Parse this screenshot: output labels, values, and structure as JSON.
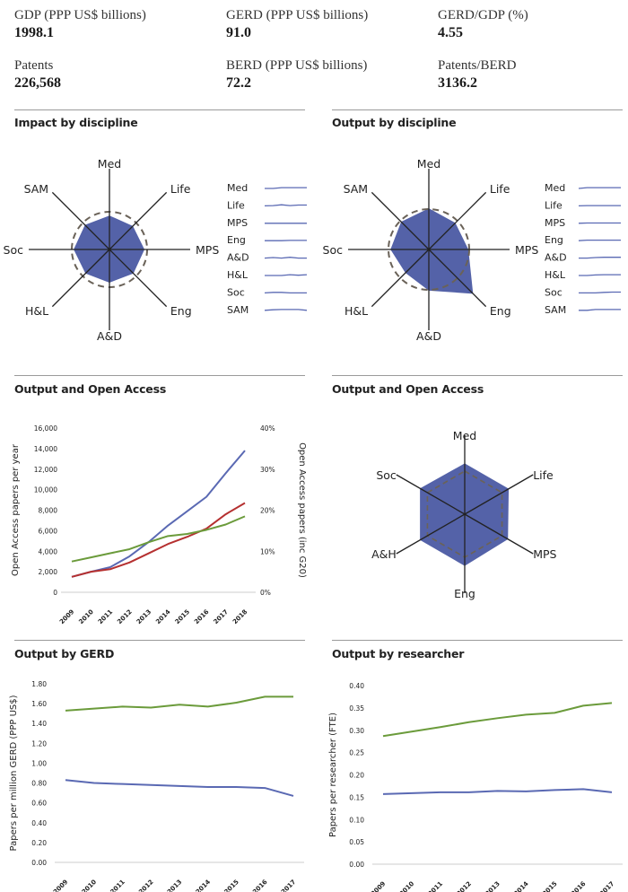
{
  "stats": [
    {
      "label": "GDP (PPP US$ billions)",
      "value": "1998.1"
    },
    {
      "label": "GERD (PPP US$ billions)",
      "value": "91.0"
    },
    {
      "label": "GERD/GDP (%)",
      "value": "4.55"
    },
    {
      "label": "Patents",
      "value": "226,568"
    },
    {
      "label": "BERD (PPP US$ billions)",
      "value": "72.2"
    },
    {
      "label": "Patents/BERD",
      "value": "3136.2"
    }
  ],
  "sections": {
    "impact": "Impact by discipline",
    "output": "Output by discipline",
    "oa_line": "Output and Open Access",
    "oa_radar": "Output and Open Access",
    "gerd": "Output by GERD",
    "researcher": "Output by researcher"
  },
  "colors": {
    "fill": "#5462a8",
    "blue": "#5a69b3",
    "red": "#b53030",
    "green": "#6b9b3b",
    "dash": "#6a6258"
  },
  "chart_data": [
    {
      "id": "impact",
      "type": "radar",
      "axes": [
        "Med",
        "Life",
        "MPS",
        "Eng",
        "A&D",
        "H&L",
        "Soc",
        "SAM"
      ],
      "values": [
        0.9,
        0.88,
        0.93,
        0.9,
        0.88,
        0.9,
        0.95,
        0.92
      ],
      "reference": 1.0,
      "sparklines": [
        [
          0,
          0,
          0.3,
          0.3,
          0.3,
          0.3
        ],
        [
          0,
          0.1,
          0.4,
          0.1,
          0.3,
          0.3
        ],
        [
          0,
          0,
          0,
          0,
          0,
          0
        ],
        [
          0,
          0,
          0,
          0.1,
          0.1,
          0.1
        ],
        [
          0,
          0.2,
          0,
          0.3,
          0,
          0
        ],
        [
          0,
          0,
          0,
          0.3,
          0.1,
          0.3
        ],
        [
          0,
          0.2,
          0.2,
          0,
          0,
          0
        ],
        [
          0,
          0.2,
          0.3,
          0.3,
          0.3,
          0
        ]
      ]
    },
    {
      "id": "output",
      "type": "radar",
      "axes": [
        "Med",
        "Life",
        "MPS",
        "Eng",
        "A&D",
        "H&L",
        "Soc",
        "SAM"
      ],
      "values": [
        1.02,
        0.93,
        0.98,
        1.55,
        1.02,
        0.82,
        0.95,
        0.97
      ],
      "reference": 1.0,
      "sparklines": [
        [
          0,
          0.3,
          0.3,
          0.3,
          0.3,
          0.3
        ],
        [
          0,
          0.1,
          0.1,
          0.1,
          0.1,
          0.1
        ],
        [
          0,
          0.1,
          0.1,
          0.1,
          0.1,
          0.1
        ],
        [
          0,
          0.2,
          0.2,
          0.2,
          0.2,
          0.2
        ],
        [
          0,
          0,
          0.2,
          0.3,
          0.3,
          0.3
        ],
        [
          0,
          0,
          0.2,
          0.3,
          0.3,
          0.3
        ],
        [
          0,
          0,
          0,
          0.2,
          0.3,
          0.3
        ],
        [
          0,
          0,
          0.3,
          0.3,
          0.3,
          0.3
        ]
      ]
    },
    {
      "id": "oa_line",
      "type": "line",
      "x": [
        "2009",
        "2010",
        "2011",
        "2012",
        "2013",
        "2014",
        "2015",
        "2016",
        "2017",
        "2018"
      ],
      "ylabel": "Open Access papers per year",
      "y2label": "Open Access papers (inc G20)",
      "yticks": [
        "0",
        "2,000",
        "4,000",
        "6,000",
        "8,000",
        "10,000",
        "12,000",
        "14,000",
        "16,000"
      ],
      "y2ticks": [
        "0%",
        "10%",
        "20%",
        "30%",
        "40%"
      ],
      "ylim": [
        0,
        16000
      ],
      "y2lim": [
        0,
        40
      ],
      "series": [
        {
          "name": "blue",
          "axis": "left",
          "values": [
            1500,
            2000,
            2450,
            3500,
            4900,
            6500,
            7900,
            9300,
            11600,
            13800
          ]
        },
        {
          "name": "red",
          "axis": "left",
          "values": [
            1500,
            2000,
            2250,
            2900,
            3800,
            4700,
            5400,
            6200,
            7600,
            8700
          ]
        },
        {
          "name": "green",
          "axis": "right",
          "values": [
            7.5,
            8.5,
            9.5,
            10.5,
            12.2,
            13.7,
            14.2,
            15.2,
            16.5,
            18.5
          ]
        }
      ]
    },
    {
      "id": "oa_radar",
      "type": "radar",
      "axes": [
        "Med",
        "Life",
        "MPS",
        "Eng",
        "A&H",
        "Soc"
      ],
      "values": [
        1.18,
        1.18,
        1.16,
        1.2,
        1.2,
        1.2
      ],
      "reference": 1.0
    },
    {
      "id": "gerd",
      "type": "line",
      "x": [
        "2009",
        "2010",
        "2011",
        "2012",
        "2013",
        "2014",
        "2015",
        "2016",
        "2017"
      ],
      "ylabel": "Papers per million GERD (PPP US$)",
      "yticks": [
        "0.00",
        "0.20",
        "0.40",
        "0.60",
        "0.80",
        "1.00",
        "1.20",
        "1.40",
        "1.60",
        "1.80"
      ],
      "ylim": [
        0,
        1.8
      ],
      "series": [
        {
          "name": "green",
          "values": [
            1.53,
            1.55,
            1.57,
            1.56,
            1.59,
            1.57,
            1.61,
            1.67,
            1.67
          ]
        },
        {
          "name": "blue",
          "values": [
            0.83,
            0.8,
            0.79,
            0.78,
            0.77,
            0.76,
            0.76,
            0.75,
            0.67
          ]
        }
      ]
    },
    {
      "id": "researcher",
      "type": "line",
      "x": [
        "2009",
        "2010",
        "2011",
        "2012",
        "2013",
        "2014",
        "2015",
        "2016",
        "2017"
      ],
      "ylabel": "Papers per researcher (FTE)",
      "yticks": [
        "0.00",
        "0.05",
        "0.10",
        "0.15",
        "0.20",
        "0.25",
        "0.30",
        "0.35",
        "0.40"
      ],
      "ylim": [
        0,
        0.4
      ],
      "series": [
        {
          "name": "green",
          "values": [
            0.287,
            0.297,
            0.307,
            0.318,
            0.327,
            0.335,
            0.339,
            0.355,
            0.361
          ]
        },
        {
          "name": "blue",
          "values": [
            0.157,
            0.159,
            0.161,
            0.161,
            0.164,
            0.163,
            0.166,
            0.168,
            0.161
          ]
        }
      ]
    }
  ]
}
